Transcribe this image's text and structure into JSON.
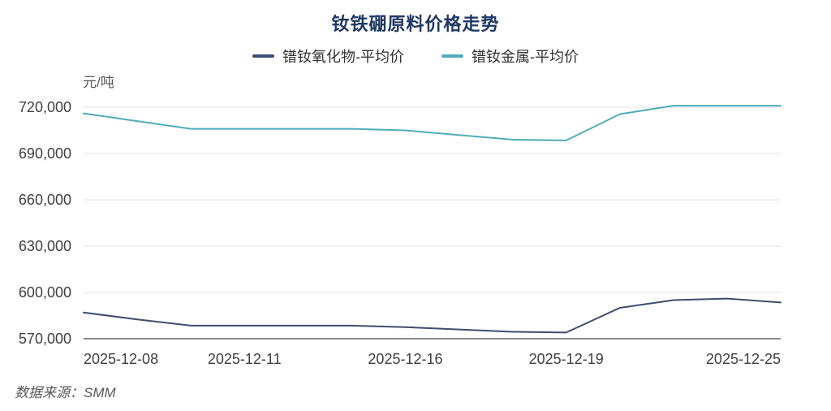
{
  "footer": {
    "text": "数据来源：SMM"
  },
  "chart_data": {
    "type": "line",
    "title": "钕铁硼原料价格走势",
    "unit_label": "元/吨",
    "x": [
      "2025-12-08",
      "2025-12-09",
      "2025-12-10",
      "2025-12-11",
      "2025-12-12",
      "2025-12-15",
      "2025-12-16",
      "2025-12-17",
      "2025-12-18",
      "2025-12-19",
      "2025-12-22",
      "2025-12-23",
      "2025-12-24",
      "2025-12-25"
    ],
    "x_tick_indices": [
      0,
      3,
      6,
      9,
      13
    ],
    "x_tick_labels": [
      "2025-12-08",
      "2025-12-11",
      "2025-12-16",
      "2025-12-19",
      "2025-12-25"
    ],
    "series": [
      {
        "name": "镨钕氧化物-平均价",
        "color": "#3D4E6E",
        "values": [
          587000,
          582500,
          578500,
          578500,
          578500,
          578500,
          577500,
          576000,
          574500,
          574000,
          590000,
          595000,
          596000,
          593500
        ]
      },
      {
        "name": "镨钕金属-平均价",
        "color": "#4FADB9",
        "values": [
          716000,
          711000,
          706000,
          706000,
          706000,
          706000,
          705000,
          702000,
          699000,
          698500,
          715500,
          721000,
          721000,
          721000
        ]
      }
    ],
    "ylim": [
      570000,
      720000
    ],
    "y_ticks": [
      570000,
      600000,
      630000,
      660000,
      690000,
      720000
    ],
    "grid": "horizontal-only",
    "legend_position": "top-center",
    "colors": {
      "title": "#1F3864",
      "legend_text": "#333333",
      "axis_label": "#404040",
      "grid_line": "#E3E3E3",
      "axis_line": "#666666",
      "source_text": "#595959"
    }
  }
}
